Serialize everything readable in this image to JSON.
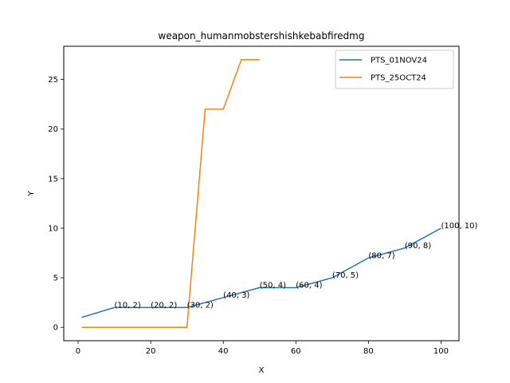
{
  "chart_data": {
    "type": "line",
    "title": "weapon_humanmobstershishkebabfiredmg",
    "xlabel": "X",
    "ylabel": "Y",
    "xlim": [
      -3.95,
      104.95
    ],
    "ylim": [
      -1.35,
      28.35
    ],
    "xticks": [
      0,
      20,
      40,
      60,
      80,
      100
    ],
    "yticks": [
      0,
      5,
      10,
      15,
      20,
      25
    ],
    "grid": false,
    "legend_position": "top-right",
    "series": [
      {
        "name": "PTS_01NOV24",
        "color": "#1f77b4",
        "x": [
          1,
          10,
          20,
          30,
          40,
          50,
          60,
          70,
          80,
          90,
          100
        ],
        "y": [
          1,
          2,
          2,
          2,
          3,
          4,
          4,
          5,
          7,
          8,
          10
        ],
        "point_labels": [
          {
            "x": 10,
            "y": 2,
            "text": "(10, 2)"
          },
          {
            "x": 20,
            "y": 2,
            "text": "(20, 2)"
          },
          {
            "x": 30,
            "y": 2,
            "text": "(30, 2)"
          },
          {
            "x": 40,
            "y": 3,
            "text": "(40, 3)"
          },
          {
            "x": 50,
            "y": 4,
            "text": "(50, 4)"
          },
          {
            "x": 60,
            "y": 4,
            "text": "(60, 4)"
          },
          {
            "x": 70,
            "y": 5,
            "text": "(70, 5)"
          },
          {
            "x": 80,
            "y": 7,
            "text": "(80, 7)"
          },
          {
            "x": 90,
            "y": 8,
            "text": "(90, 8)"
          },
          {
            "x": 100,
            "y": 10,
            "text": "(100, 10)"
          }
        ]
      },
      {
        "name": "PTS_25OCT24",
        "color": "#ff7f0e",
        "x": [
          1,
          10,
          20,
          30,
          35,
          40,
          45,
          50
        ],
        "y": [
          0,
          0,
          0,
          0,
          22,
          22,
          27,
          27
        ]
      }
    ]
  }
}
